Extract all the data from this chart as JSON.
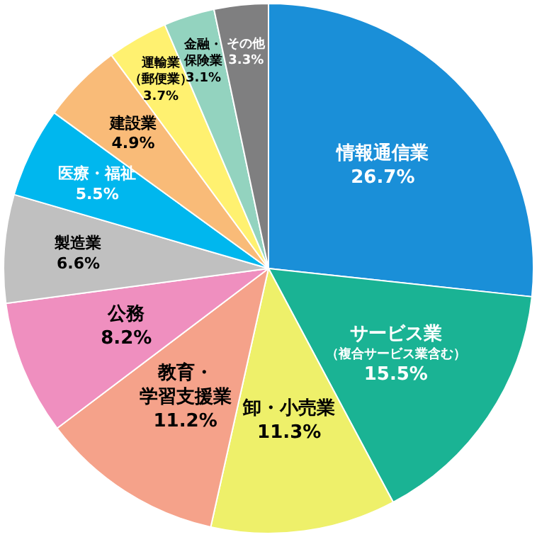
{
  "chart_data": {
    "type": "pie",
    "categories": [
      "情報通信業",
      "サービス業（複合サービス業含む）",
      "卸・小売業",
      "教育・学習支援業",
      "公務",
      "製造業",
      "医療・福祉",
      "建設業",
      "運輸業（郵便業）",
      "金融・保険業",
      "その他"
    ],
    "values": [
      26.7,
      15.5,
      11.3,
      11.2,
      8.2,
      6.6,
      5.5,
      4.9,
      3.7,
      3.1,
      3.3
    ],
    "value_labels": [
      "26.7%",
      "15.5%",
      "11.3%",
      "11.2%",
      "8.2%",
      "6.6%",
      "5.5%",
      "4.9%",
      "3.7%",
      "3.1%",
      "3.3%"
    ],
    "colors": [
      "#1a8fd8",
      "#1ab394",
      "#eef06a",
      "#f5a28a",
      "#ef8fbf",
      "#c0c0c0",
      "#00b7ee",
      "#f9bb78",
      "#fff170",
      "#93d3bf",
      "#7f7f80"
    ],
    "legend": false
  }
}
